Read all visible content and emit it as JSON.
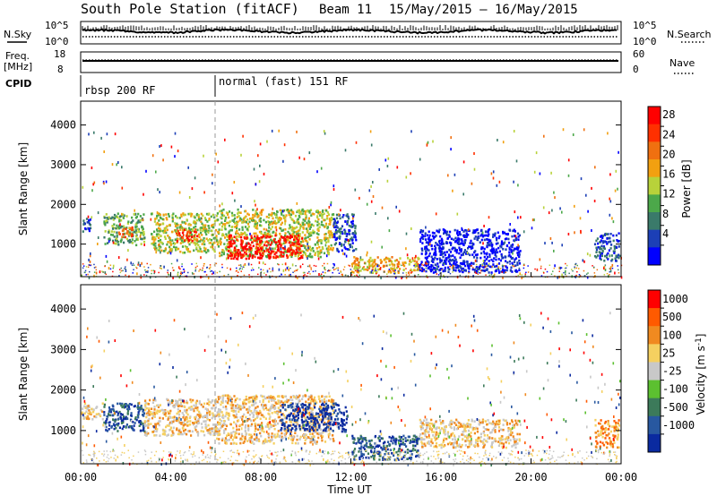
{
  "header": {
    "title": "South Pole Station (fitACF)",
    "beam_label": "Beam 11",
    "date_range": "15/May/2015 – 16/May/2015"
  },
  "top_panels": {
    "nsky_label": "N.Sky",
    "nsky_ticks": [
      "10^5",
      "10^0"
    ],
    "nsearch_label": "N.Search",
    "nsearch_ticks": [
      "10^5",
      "10^0"
    ],
    "freq_label_1": "Freq.",
    "freq_label_2": "[MHz]",
    "freq_ticks": [
      "18",
      "8"
    ],
    "nave_label": "Nave",
    "nave_ticks": [
      "60",
      "0"
    ],
    "cpid_label": "CPID",
    "cpid_modes": [
      "rbsp 200 RF",
      "normal (fast) 151 RF"
    ]
  },
  "x_axis": {
    "label": "Time UT",
    "ticks": [
      "00:00",
      "04:00",
      "08:00",
      "12:00",
      "16:00",
      "20:00",
      "00:00"
    ]
  },
  "colors": {
    "power_scale": [
      "#0000ff",
      "#1c3fb6",
      "#3a7a6a",
      "#4ca84a",
      "#b8d23a",
      "#f2a010",
      "#f07010",
      "#ff3000",
      "#ff0000"
    ],
    "velocity_scale": [
      "#0a2aa0",
      "#2858a0",
      "#3c7a5a",
      "#5cc030",
      "#c8c8c8",
      "#f5d060",
      "#f08a20",
      "#ff5a00",
      "#ff0000"
    ]
  },
  "chart_data": [
    {
      "type": "heatmap",
      "panel": "power",
      "ylabel": "Slant Range [km]",
      "xlabel": "",
      "x_range_hours": [
        0,
        24
      ],
      "ylim": [
        180,
        4600
      ],
      "y_ticks": [
        1000,
        2000,
        3000,
        4000
      ],
      "colorbar": {
        "label": "Power [dB]",
        "ticks": [
          4,
          8,
          12,
          16,
          20,
          24,
          28
        ],
        "range": [
          0,
          32
        ]
      },
      "regions": [
        {
          "t0": 0.0,
          "t1": 0.4,
          "r0": 1300,
          "r1": 1700,
          "level": 2
        },
        {
          "t0": 1.0,
          "t1": 2.8,
          "r0": 1000,
          "r1": 1800,
          "level": 4
        },
        {
          "t0": 1.6,
          "t1": 2.3,
          "r0": 1200,
          "r1": 1450,
          "level": 7
        },
        {
          "t0": 3.1,
          "t1": 6.0,
          "r0": 800,
          "r1": 1800,
          "level": 5
        },
        {
          "t0": 4.2,
          "t1": 5.2,
          "r0": 1100,
          "r1": 1400,
          "level": 8
        },
        {
          "t0": 6.0,
          "t1": 11.2,
          "r0": 700,
          "r1": 1900,
          "level": 5
        },
        {
          "t0": 6.5,
          "t1": 9.8,
          "r0": 650,
          "r1": 1250,
          "level": 9
        },
        {
          "t0": 11.2,
          "t1": 12.2,
          "r0": 800,
          "r1": 1800,
          "level": 2
        },
        {
          "t0": 12.0,
          "t1": 15.0,
          "r0": 300,
          "r1": 700,
          "level": 6
        },
        {
          "t0": 15.0,
          "t1": 19.5,
          "r0": 300,
          "r1": 1400,
          "level": 1
        },
        {
          "t0": 22.8,
          "t1": 23.9,
          "r0": 600,
          "r1": 1300,
          "level": 2
        }
      ]
    },
    {
      "type": "heatmap",
      "panel": "velocity",
      "ylabel": "Slant Range [km]",
      "xlabel": "Time UT",
      "x_range_hours": [
        0,
        24
      ],
      "ylim": [
        180,
        4600
      ],
      "y_ticks": [
        1000,
        2000,
        3000,
        4000
      ],
      "colorbar": {
        "label": "Velocity [m s^-1]",
        "ticks": [
          "1000",
          "500",
          "100",
          "25",
          "-25",
          "-100",
          "-500",
          "-1000"
        ]
      },
      "regions": [
        {
          "t0": 0.0,
          "t1": 1.0,
          "r0": 1300,
          "r1": 1700,
          "level": 6
        },
        {
          "t0": 1.0,
          "t1": 2.8,
          "r0": 1000,
          "r1": 1700,
          "level": 2
        },
        {
          "t0": 2.8,
          "t1": 6.0,
          "r0": 900,
          "r1": 1800,
          "level": 6
        },
        {
          "t0": 6.0,
          "t1": 11.2,
          "r0": 700,
          "r1": 1900,
          "level": 6
        },
        {
          "t0": 8.8,
          "t1": 11.8,
          "r0": 1000,
          "r1": 1700,
          "level": 1
        },
        {
          "t0": 12.0,
          "t1": 15.0,
          "r0": 300,
          "r1": 900,
          "level": 2
        },
        {
          "t0": 15.0,
          "t1": 19.5,
          "r0": 600,
          "r1": 1300,
          "level": 6
        },
        {
          "t0": 22.8,
          "t1": 23.9,
          "r0": 600,
          "r1": 1300,
          "level": 7
        }
      ]
    }
  ]
}
